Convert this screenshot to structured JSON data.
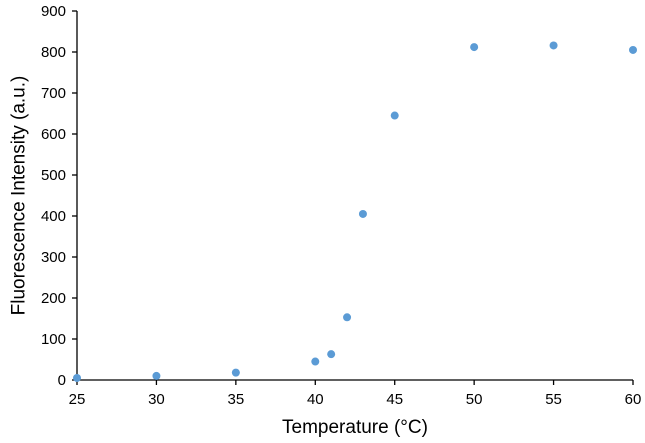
{
  "chart_data": {
    "type": "scatter",
    "xlabel": "Temperature (°C)",
    "ylabel": "Fluorescence Intensity (a.u.)",
    "xlim": [
      25,
      60
    ],
    "ylim": [
      0,
      900
    ],
    "x_ticks": [
      25,
      30,
      35,
      40,
      45,
      50,
      55,
      60
    ],
    "y_ticks": [
      0,
      100,
      200,
      300,
      400,
      500,
      600,
      700,
      800,
      900
    ],
    "grid": false,
    "legend": "none",
    "series": [
      {
        "color": "#5b9bd5",
        "points": [
          {
            "x": 25,
            "y": 5
          },
          {
            "x": 30,
            "y": 10
          },
          {
            "x": 35,
            "y": 18
          },
          {
            "x": 40,
            "y": 45
          },
          {
            "x": 41,
            "y": 63
          },
          {
            "x": 42,
            "y": 153
          },
          {
            "x": 43,
            "y": 405
          },
          {
            "x": 45,
            "y": 645
          },
          {
            "x": 50,
            "y": 812
          },
          {
            "x": 55,
            "y": 816
          },
          {
            "x": 60,
            "y": 805
          }
        ]
      }
    ]
  }
}
